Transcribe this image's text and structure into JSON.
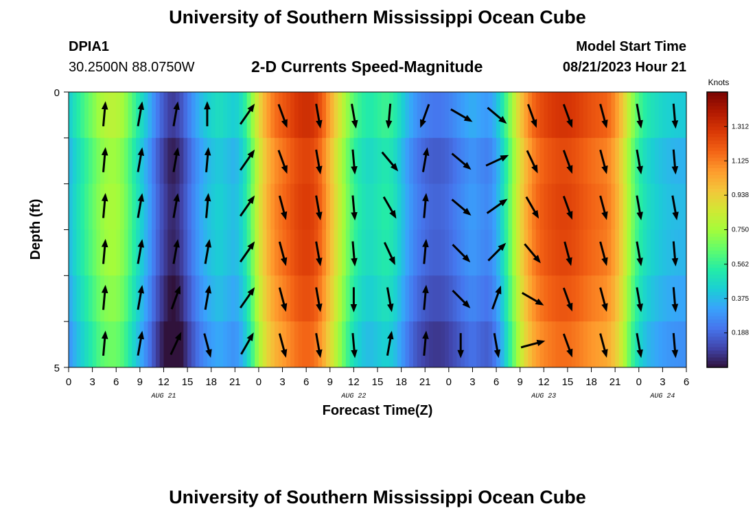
{
  "header": {
    "title": "University of Southern Mississippi Ocean Cube",
    "station_id": "DPIA1",
    "station_coords": "30.2500N  88.0750W",
    "plot_title": "2-D Currents Speed-Magnitude",
    "model_start_label": "Model Start Time",
    "model_start_value": "08/21/2023 Hour 21"
  },
  "footer": {
    "title": "University of Southern Mississippi Ocean Cube"
  },
  "chart_data": {
    "type": "heatmap",
    "title": "2-D Currents Speed-Magnitude",
    "xlabel": "Forecast Time(Z)",
    "ylabel": "Depth (ft)",
    "x_hours": [
      0,
      6,
      12,
      18,
      24,
      30,
      36,
      42,
      48,
      54,
      60,
      66,
      72,
      78
    ],
    "xlim": [
      0,
      78
    ],
    "ylim": [
      0,
      5
    ],
    "x_tick_labels": [
      "0",
      "3",
      "6",
      "9",
      "12",
      "15",
      "18",
      "21",
      "0",
      "3",
      "6",
      "9",
      "12",
      "15",
      "18",
      "21",
      "0",
      "3",
      "6",
      "9",
      "12",
      "15",
      "18",
      "21",
      "0",
      "3",
      "6"
    ],
    "day_labels": [
      {
        "label": "AUG 21",
        "hour": 12
      },
      {
        "label": "AUG 22",
        "hour": 36
      },
      {
        "label": "AUG 23",
        "hour": 60
      },
      {
        "label": "AUG 24",
        "hour": 75
      }
    ],
    "y_tick_labels": [
      "0",
      "5"
    ],
    "colorbar": {
      "label": "Knots",
      "min": 0,
      "max": 1.5,
      "ticks": [
        "1.312",
        "1.125",
        "0.938",
        "0.750",
        "0.562",
        "0.375",
        "0.188"
      ],
      "tick_values": [
        1.312,
        1.125,
        0.938,
        0.75,
        0.562,
        0.375,
        0.188
      ],
      "colormap": [
        "#30123b",
        "#4145ab",
        "#4675ed",
        "#39a2fc",
        "#1bcfd4",
        "#24eca6",
        "#61fc6c",
        "#a4fc3b",
        "#d1e834",
        "#f3c63a",
        "#fe9b2d",
        "#f36315",
        "#d93806",
        "#b11901",
        "#7a0403"
      ]
    },
    "speed_profile": {
      "hours": [
        0,
        1,
        2,
        3,
        4,
        5,
        6,
        7,
        8,
        9,
        10,
        11,
        12,
        13,
        14,
        15,
        16,
        17,
        18,
        19,
        20,
        21,
        22,
        23,
        24,
        25,
        26,
        27,
        28,
        29,
        30,
        31,
        32,
        33,
        34,
        35,
        36,
        37,
        38,
        39,
        40,
        41,
        42,
        43,
        44,
        45,
        46,
        47,
        48,
        49,
        50,
        51,
        52,
        53,
        54,
        55,
        56,
        57,
        58,
        59,
        60,
        61,
        62,
        63,
        64,
        65,
        66,
        67,
        68,
        69,
        70,
        71,
        72,
        73,
        74,
        75,
        76,
        77,
        78
      ],
      "knots": [
        0.42,
        0.52,
        0.6,
        0.68,
        0.76,
        0.8,
        0.8,
        0.74,
        0.62,
        0.5,
        0.38,
        0.25,
        0.15,
        0.08,
        0.12,
        0.22,
        0.32,
        0.4,
        0.45,
        0.48,
        0.45,
        0.42,
        0.5,
        0.68,
        0.9,
        1.05,
        1.15,
        1.2,
        1.25,
        1.3,
        1.32,
        1.3,
        1.2,
        1.05,
        0.9,
        0.75,
        0.62,
        0.55,
        0.52,
        0.55,
        0.58,
        0.55,
        0.45,
        0.35,
        0.28,
        0.24,
        0.22,
        0.22,
        0.24,
        0.28,
        0.32,
        0.35,
        0.32,
        0.3,
        0.38,
        0.55,
        0.75,
        0.95,
        1.1,
        1.2,
        1.25,
        1.28,
        1.3,
        1.3,
        1.28,
        1.25,
        1.22,
        1.2,
        1.18,
        1.1,
        0.95,
        0.75,
        0.6,
        0.52,
        0.48,
        0.45,
        0.43,
        0.42,
        0.42
      ]
    },
    "depth_row_offsets": [
      0.0,
      -0.06,
      -0.04,
      -0.05,
      -0.09,
      -0.14
    ],
    "vectors": {
      "hours": [
        4.5,
        9,
        13.5,
        17.5,
        22.5,
        27,
        31.5,
        36,
        40.5,
        45,
        49.5,
        54,
        58.5,
        63,
        67.5,
        72,
        76.5
      ],
      "row_angles_deg": [
        [
          5,
          10,
          10,
          0,
          35,
          160,
          170,
          170,
          185,
          200,
          120,
          130,
          160,
          160,
          165,
          170,
          175
        ],
        [
          5,
          10,
          10,
          5,
          35,
          160,
          170,
          175,
          140,
          10,
          130,
          65,
          155,
          160,
          165,
          170,
          175
        ],
        [
          5,
          10,
          10,
          5,
          35,
          165,
          170,
          175,
          150,
          5,
          130,
          55,
          150,
          160,
          165,
          170,
          170
        ],
        [
          5,
          10,
          10,
          10,
          35,
          165,
          170,
          175,
          155,
          5,
          135,
          45,
          140,
          165,
          165,
          170,
          175
        ],
        [
          5,
          10,
          20,
          10,
          35,
          165,
          170,
          180,
          170,
          5,
          135,
          20,
          120,
          160,
          165,
          170,
          175
        ],
        [
          5,
          10,
          25,
          165,
          30,
          165,
          170,
          175,
          10,
          5,
          180,
          170,
          75,
          160,
          165,
          170,
          175
        ]
      ]
    }
  }
}
